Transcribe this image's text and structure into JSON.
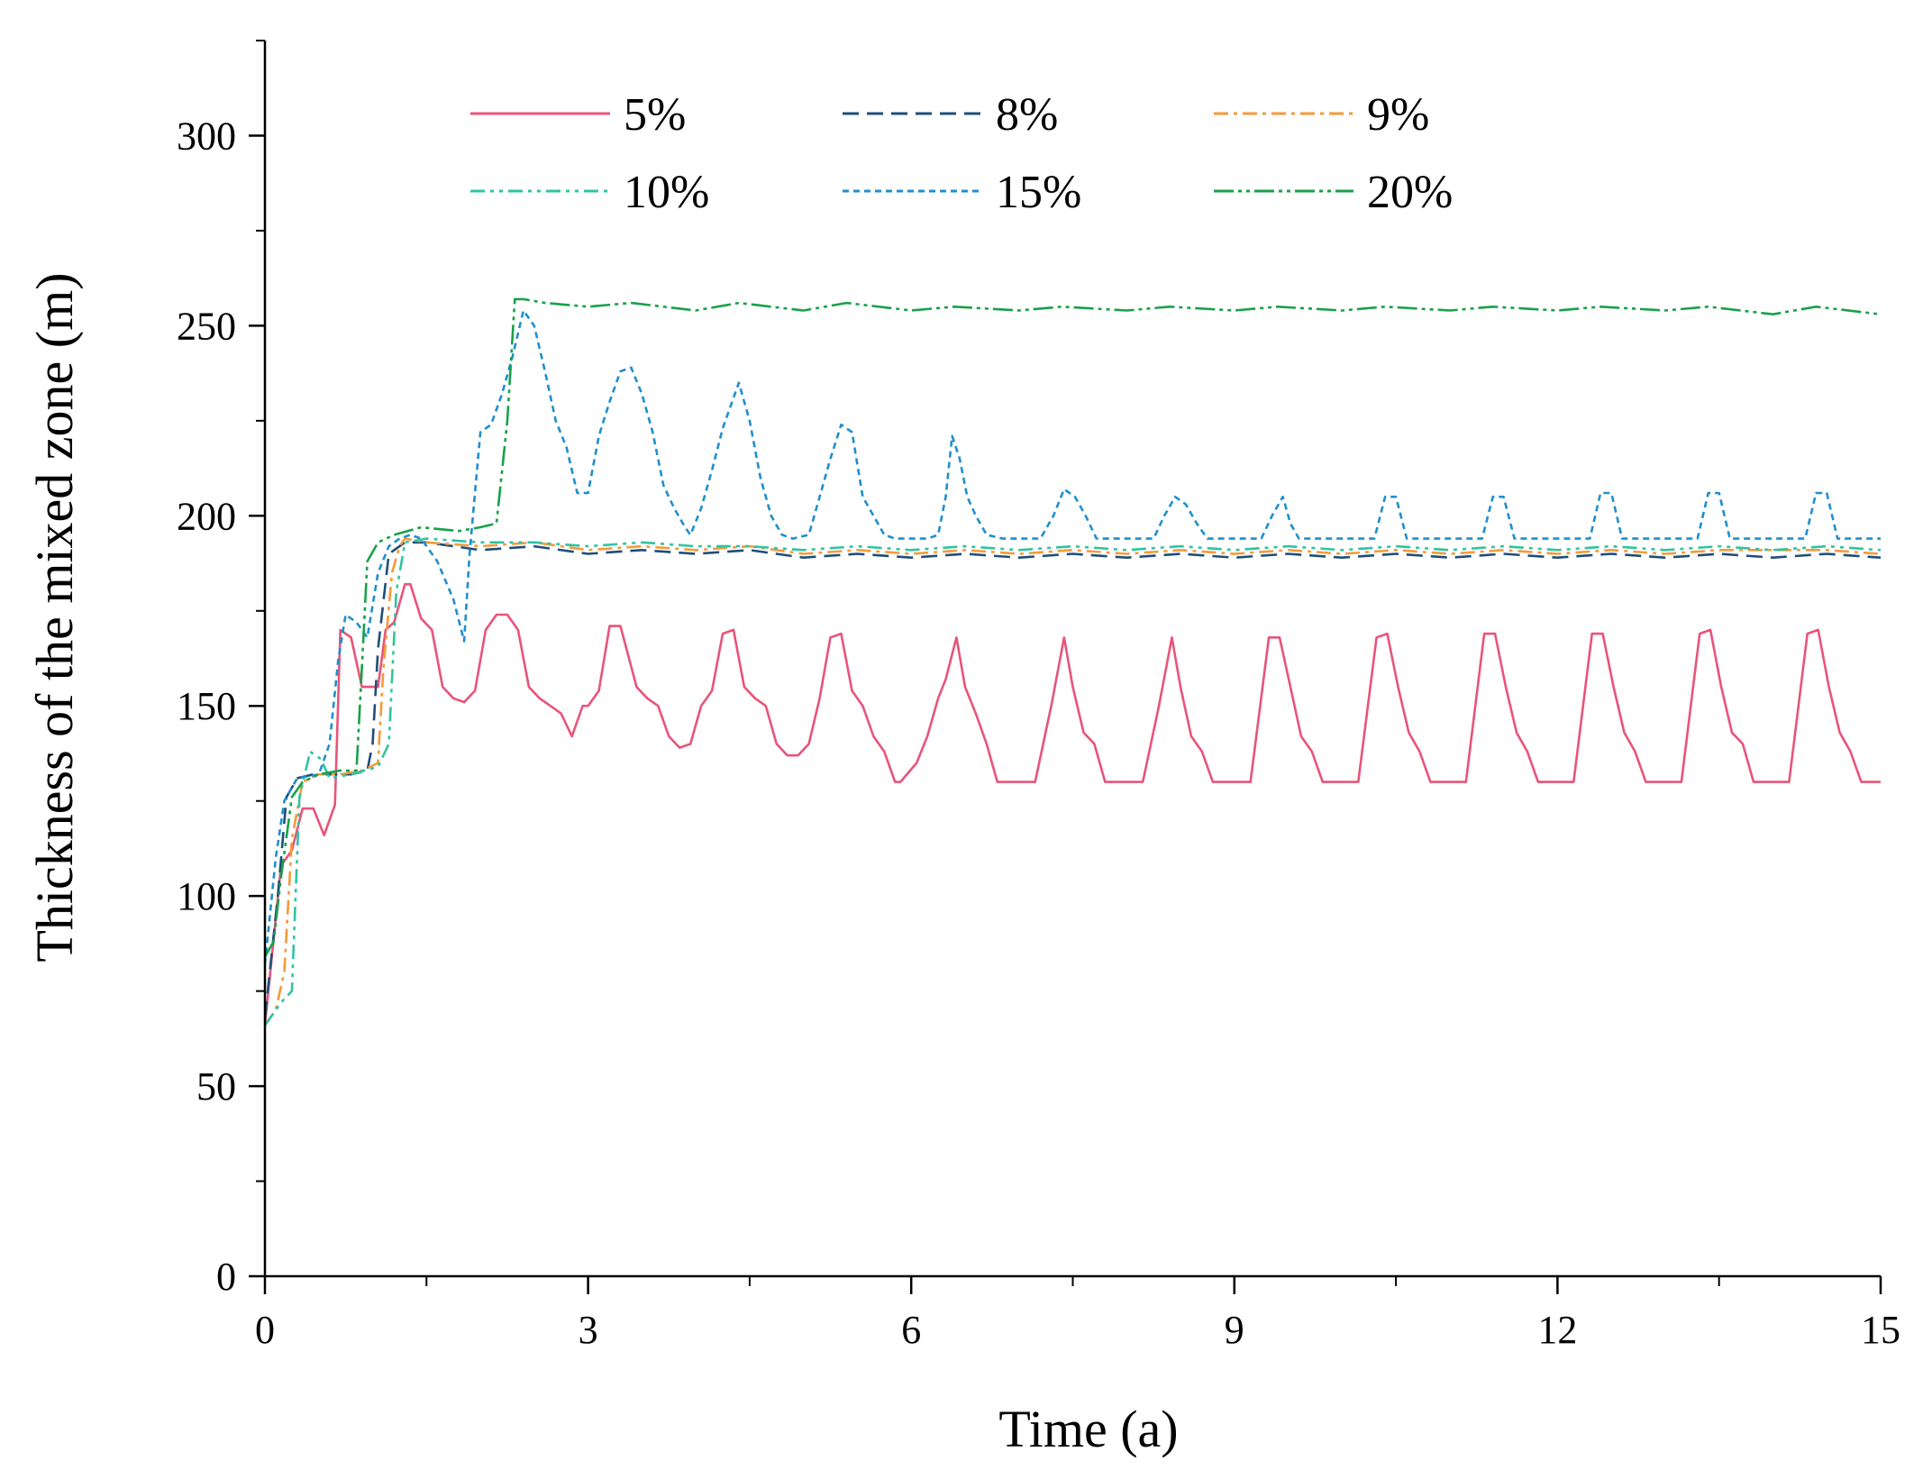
{
  "chart_data": {
    "type": "line",
    "title": "",
    "xlabel": "Time (a)",
    "ylabel": "Thickness of the mixed zone (m)",
    "xlim": [
      0,
      15
    ],
    "ylim": [
      0,
      325
    ],
    "xticks": [
      0,
      3,
      6,
      9,
      12,
      15
    ],
    "xtick_labels": [
      "0",
      "3",
      "6",
      "9",
      "12",
      "15"
    ],
    "yticks": [
      0,
      50,
      100,
      150,
      200,
      250,
      300
    ],
    "ytick_labels": [
      "0",
      "50",
      "100",
      "150",
      "200",
      "250",
      "300"
    ],
    "grid": false,
    "legend_position": "top",
    "series": [
      {
        "name": "5%",
        "color": "#e8547a",
        "dash": "solid",
        "x": [
          0,
          0.15,
          0.25,
          0.35,
          0.45,
          0.55,
          0.65,
          0.7,
          0.8,
          0.9,
          1.0,
          1.05,
          1.12,
          1.2,
          1.3,
          1.35,
          1.45,
          1.55,
          1.65,
          1.75,
          1.85,
          1.95,
          2.05,
          2.15,
          2.25,
          2.35,
          2.45,
          2.55,
          2.65,
          2.75,
          2.85,
          2.95,
          3.0,
          3.1,
          3.2,
          3.3,
          3.45,
          3.55,
          3.65,
          3.75,
          3.85,
          3.95,
          4.05,
          4.15,
          4.25,
          4.35,
          4.45,
          4.55,
          4.65,
          4.75,
          4.85,
          4.95,
          5.05,
          5.15,
          5.25,
          5.35,
          5.45,
          5.55,
          5.65,
          5.75,
          5.85,
          5.9,
          6.05,
          6.15,
          6.25,
          6.32,
          6.42,
          6.5,
          6.6,
          6.7,
          6.8,
          7.0,
          7.15,
          7.3,
          7.42,
          7.5,
          7.6,
          7.7,
          7.8,
          8.0,
          8.15,
          8.3,
          8.42,
          8.5,
          8.6,
          8.7,
          8.8,
          9.0,
          9.15,
          9.32,
          9.42,
          9.52,
          9.62,
          9.72,
          9.82,
          10.0,
          10.15,
          10.32,
          10.42,
          10.52,
          10.62,
          10.72,
          10.82,
          11.0,
          11.15,
          11.32,
          11.42,
          11.52,
          11.62,
          11.72,
          11.82,
          12.0,
          12.15,
          12.32,
          12.42,
          12.52,
          12.62,
          12.72,
          12.82,
          13.0,
          13.15,
          13.32,
          13.42,
          13.52,
          13.62,
          13.72,
          13.82,
          14.0,
          14.15,
          14.32,
          14.42,
          14.52,
          14.62,
          14.72,
          14.82,
          15.0
        ],
        "values": [
          66,
          108,
          112,
          123,
          123,
          116,
          124,
          170,
          168,
          155,
          155,
          155,
          170,
          172,
          182,
          182,
          173,
          170,
          155,
          152,
          151,
          154,
          170,
          174,
          174,
          170,
          155,
          152,
          150,
          148,
          142,
          150,
          150,
          154,
          171,
          171,
          155,
          152,
          150,
          142,
          139,
          140,
          150,
          154,
          169,
          170,
          155,
          152,
          150,
          140,
          137,
          137,
          140,
          152,
          168,
          169,
          154,
          150,
          142,
          138,
          130,
          130,
          135,
          142,
          152,
          157,
          168,
          155,
          148,
          140,
          130,
          130,
          130,
          150,
          168,
          155,
          143,
          140,
          130,
          130,
          130,
          150,
          168,
          155,
          142,
          138,
          130,
          130,
          130,
          168,
          168,
          155,
          142,
          138,
          130,
          130,
          130,
          168,
          169,
          155,
          143,
          138,
          130,
          130,
          130,
          169,
          169,
          155,
          143,
          138,
          130,
          130,
          130,
          169,
          169,
          155,
          143,
          138,
          130,
          130,
          130,
          169,
          170,
          155,
          143,
          140,
          130,
          130,
          130,
          169,
          170,
          155,
          143,
          138,
          130,
          130
        ]
      },
      {
        "name": "8%",
        "color": "#1f4e79",
        "dash": "dashed",
        "x": [
          0,
          0.12,
          0.2,
          0.3,
          0.45,
          0.6,
          0.8,
          0.95,
          1.0,
          1.05,
          1.15,
          1.25,
          1.3,
          1.5,
          2.0,
          2.5,
          3.0,
          3.5,
          4.0,
          4.5,
          5.0,
          5.5,
          6.0,
          6.5,
          7.0,
          7.5,
          8.0,
          8.5,
          9.0,
          9.5,
          10.0,
          10.5,
          11.0,
          11.5,
          12.0,
          12.5,
          13.0,
          13.5,
          14.0,
          14.5,
          15.0
        ],
        "values": [
          68,
          100,
          126,
          131,
          132,
          132,
          132,
          133,
          140,
          165,
          190,
          192,
          193,
          193,
          191,
          192,
          190,
          191,
          190,
          191,
          189,
          190,
          189,
          190,
          189,
          190,
          189,
          190,
          189,
          190,
          189,
          190,
          189,
          190,
          189,
          190,
          189,
          190,
          189,
          190,
          189
        ]
      },
      {
        "name": "9%",
        "color": "#f59a3a",
        "dash": "dashdot",
        "x": [
          0,
          0.1,
          0.18,
          0.25,
          0.35,
          0.5,
          0.7,
          0.9,
          1.05,
          1.1,
          1.18,
          1.25,
          1.3,
          1.5,
          2.0,
          2.5,
          3.0,
          3.5,
          4.0,
          4.5,
          5.0,
          5.5,
          6.0,
          6.5,
          7.0,
          7.5,
          8.0,
          8.5,
          9.0,
          9.5,
          10.0,
          10.5,
          11.0,
          11.5,
          12.0,
          12.5,
          13.0,
          13.5,
          14.0,
          14.5,
          15.0
        ],
        "values": [
          66,
          70,
          80,
          115,
          130,
          132,
          132,
          133,
          135,
          160,
          185,
          192,
          194,
          193,
          192,
          193,
          191,
          192,
          191,
          192,
          190,
          191,
          190,
          191,
          190,
          191,
          190,
          191,
          190,
          191,
          190,
          191,
          190,
          191,
          190,
          191,
          190,
          191,
          191,
          191,
          190
        ]
      },
      {
        "name": "10%",
        "color": "#2fc4a2",
        "dash": "dashdotdot",
        "x": [
          0,
          0.15,
          0.25,
          0.32,
          0.42,
          0.52,
          0.6,
          0.8,
          1.05,
          1.15,
          1.22,
          1.3,
          1.5,
          2.0,
          2.5,
          3.0,
          3.5,
          4.0,
          4.5,
          5.0,
          5.5,
          6.0,
          6.5,
          7.0,
          7.5,
          8.0,
          8.5,
          9.0,
          9.5,
          10.0,
          10.5,
          11.0,
          11.5,
          12.0,
          12.5,
          13.0,
          13.5,
          14.0,
          14.5,
          15.0
        ],
        "values": [
          66,
          72,
          75,
          126,
          138,
          136,
          131,
          132,
          134,
          140,
          180,
          193,
          194,
          193,
          193,
          192,
          193,
          192,
          192,
          191,
          192,
          191,
          192,
          191,
          192,
          191,
          192,
          191,
          192,
          191,
          192,
          191,
          192,
          191,
          192,
          191,
          192,
          191,
          192,
          191
        ]
      },
      {
        "name": "15%",
        "color": "#1f8fce",
        "dash": "dotted",
        "x": [
          0,
          0.1,
          0.18,
          0.3,
          0.5,
          0.6,
          0.68,
          0.75,
          0.85,
          0.95,
          1.05,
          1.15,
          1.25,
          1.35,
          1.45,
          1.6,
          1.75,
          1.85,
          1.9,
          2.0,
          2.1,
          2.2,
          2.3,
          2.4,
          2.5,
          2.6,
          2.7,
          2.8,
          2.9,
          3.0,
          3.1,
          3.2,
          3.3,
          3.4,
          3.5,
          3.6,
          3.7,
          3.8,
          3.9,
          3.95,
          4.05,
          4.15,
          4.25,
          4.4,
          4.5,
          4.6,
          4.7,
          4.8,
          4.9,
          5.05,
          5.15,
          5.25,
          5.35,
          5.45,
          5.55,
          5.65,
          5.75,
          5.85,
          6.0,
          6.15,
          6.25,
          6.32,
          6.38,
          6.45,
          6.52,
          6.6,
          6.7,
          6.85,
          7.0,
          7.2,
          7.32,
          7.42,
          7.52,
          7.62,
          7.72,
          8.0,
          8.25,
          8.35,
          8.45,
          8.55,
          8.65,
          8.75,
          9.0,
          9.25,
          9.35,
          9.45,
          9.52,
          9.6,
          10.0,
          10.3,
          10.4,
          10.5,
          10.6,
          11.0,
          11.3,
          11.4,
          11.5,
          11.6,
          12.0,
          12.3,
          12.4,
          12.5,
          12.6,
          13.0,
          13.3,
          13.4,
          13.5,
          13.6,
          14.0,
          14.3,
          14.4,
          14.5,
          14.6,
          15.0
        ],
        "values": [
          82,
          110,
          125,
          131,
          132,
          140,
          162,
          174,
          172,
          168,
          185,
          192,
          194,
          195,
          194,
          188,
          178,
          167,
          190,
          222,
          224,
          232,
          242,
          254,
          250,
          238,
          225,
          218,
          206,
          206,
          221,
          230,
          238,
          239,
          232,
          222,
          208,
          202,
          197,
          195,
          202,
          212,
          223,
          235,
          225,
          210,
          200,
          195,
          194,
          195,
          205,
          215,
          224,
          222,
          205,
          200,
          195,
          194,
          194,
          194,
          195,
          205,
          221,
          215,
          205,
          200,
          195,
          194,
          194,
          194,
          200,
          207,
          205,
          200,
          194,
          194,
          194,
          200,
          205,
          203,
          198,
          194,
          194,
          194,
          200,
          205,
          198,
          194,
          194,
          194,
          205,
          205,
          194,
          194,
          194,
          205,
          205,
          194,
          194,
          194,
          206,
          206,
          194,
          194,
          194,
          206,
          206,
          194,
          194,
          194,
          206,
          206,
          194,
          194
        ]
      },
      {
        "name": "20%",
        "color": "#18a14a",
        "dash": "dashdotdot-long",
        "x": [
          0,
          0.08,
          0.15,
          0.25,
          0.35,
          0.5,
          0.7,
          0.85,
          0.9,
          0.95,
          1.05,
          1.2,
          1.45,
          1.8,
          2.0,
          2.15,
          2.25,
          2.32,
          2.4,
          2.6,
          3.0,
          3.4,
          4.0,
          4.4,
          5.0,
          5.4,
          6.0,
          6.4,
          7.0,
          7.4,
          8.0,
          8.4,
          9.0,
          9.4,
          10.0,
          10.4,
          11.0,
          11.4,
          12.0,
          12.4,
          13.0,
          13.4,
          14.0,
          14.4,
          15.0
        ],
        "values": [
          84,
          88,
          105,
          126,
          130,
          132,
          133,
          133,
          160,
          188,
          193,
          195,
          197,
          196,
          197,
          198,
          225,
          257,
          257,
          256,
          255,
          256,
          254,
          256,
          254,
          256,
          254,
          255,
          254,
          255,
          254,
          255,
          254,
          255,
          254,
          255,
          254,
          255,
          254,
          255,
          254,
          255,
          253,
          255,
          253
        ]
      }
    ]
  }
}
